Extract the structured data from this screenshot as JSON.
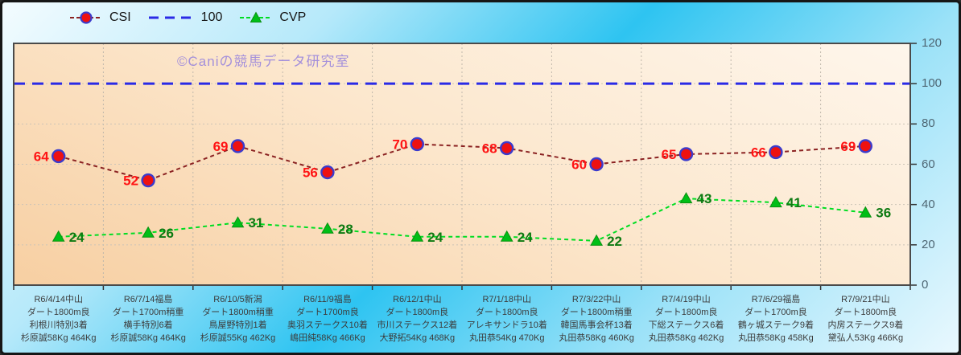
{
  "legend": {
    "items": [
      {
        "label": "CSI",
        "marker": "red-circle-blue-ring",
        "line_color": "#8b2222"
      },
      {
        "label": "100",
        "marker": "none",
        "line_color": "#2a2ae6"
      },
      {
        "label": "CVP",
        "marker": "green-triangle",
        "line_color": "#00dd22"
      }
    ]
  },
  "watermark": {
    "text": "©Caniの競馬データ研究室",
    "color": "#9b87dd"
  },
  "chart_data": {
    "type": "line",
    "title": "",
    "xlabel": "",
    "ylabel": "",
    "ylim": [
      0,
      120
    ],
    "yticks": [
      0,
      20,
      40,
      60,
      80,
      100,
      120
    ],
    "grid": true,
    "legend_position": "top-left",
    "categories": [
      "R6/4/14中山\nダート1800m良\n利根川特別3着\n杉原誠58Kg 464Kg",
      "R6/7/14福島\nダート1700m稍重\n横手特別6着\n杉原誠58Kg 464Kg",
      "R6/10/5新潟\nダート1800m稍重\n鳥屋野特別1着\n杉原誠55Kg 462Kg",
      "R6/11/9福島\nダート1700m良\n奥羽ステークス10着\n嶋田純58Kg 466Kg",
      "R6/12/1中山\nダート1800m良\n市川ステークス12着\n大野拓54Kg 468Kg",
      "R7/1/18中山\nダート1800m良\nアレキサンドラ10着\n丸田恭54Kg 470Kg",
      "R7/3/22中山\nダート1800m稍重\n韓国馬事会杯13着\n丸田恭58Kg 460Kg",
      "R7/4/19中山\nダート1800m良\n下総ステークス6着\n丸田恭58Kg 462Kg",
      "R7/6/29福島\nダート1700m良\n鶴ヶ城ステーク9着\n丸田恭58Kg 458Kg",
      "R7/9/21中山\nダート1800m良\n内房ステークス9着\n黛弘人53Kg 466Kg"
    ],
    "series": [
      {
        "name": "CSI",
        "values": [
          64,
          52,
          69,
          56,
          70,
          68,
          60,
          65,
          66,
          69
        ],
        "color": "#8b2222",
        "marker": "circle",
        "marker_fill": "#ee1111",
        "marker_stroke": "#3b3bcc",
        "label_color": "#ff1414"
      },
      {
        "name": "100",
        "type": "reference",
        "value": 100,
        "color": "#2a2ae6"
      },
      {
        "name": "CVP",
        "values": [
          24,
          26,
          31,
          28,
          24,
          24,
          22,
          43,
          41,
          36
        ],
        "color": "#00dd22",
        "marker": "triangle",
        "marker_fill": "#00bf17",
        "marker_stroke": "#0b9110",
        "label_color": "#0e7a12"
      }
    ]
  }
}
